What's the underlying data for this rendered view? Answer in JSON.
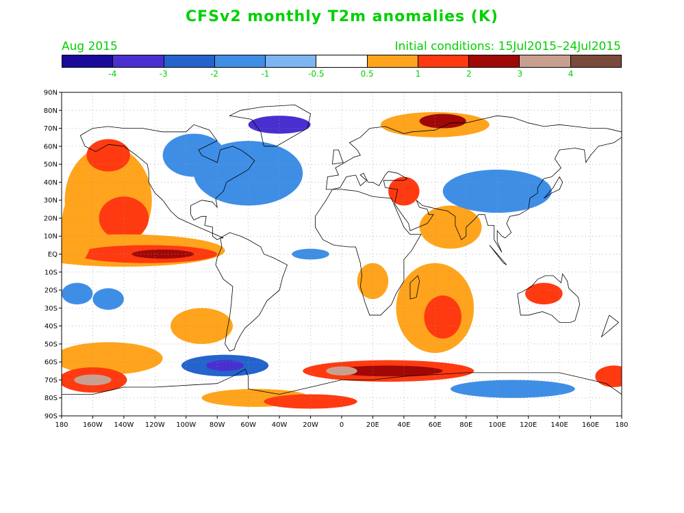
{
  "title": "CFSv2 monthly T2m anomalies (K)",
  "forecast_month": "Aug 2015",
  "initial_conditions": "Initial conditions: 15Jul2015–24Jul2015",
  "colorbar": {
    "colors": [
      "#1a0a9a",
      "#4a2fd0",
      "#2464cc",
      "#3f8ee6",
      "#7db5f2",
      "#ffffff",
      "#ffa41c",
      "#ff3a10",
      "#a00808",
      "#c9a090",
      "#7a4a3c"
    ],
    "labels": [
      "-4",
      "-3",
      "-2",
      "-1",
      "-0.5",
      "0.5",
      "1",
      "2",
      "3",
      "4"
    ]
  },
  "lat_labels": [
    "90N",
    "80N",
    "70N",
    "60N",
    "50N",
    "40N",
    "30N",
    "20N",
    "10N",
    "EQ",
    "10S",
    "20S",
    "30S",
    "40S",
    "50S",
    "60S",
    "70S",
    "80S",
    "90S"
  ],
  "lon_labels": [
    "180",
    "160W",
    "140W",
    "120W",
    "100W",
    "80W",
    "60W",
    "40W",
    "20W",
    "0",
    "20E",
    "40E",
    "60E",
    "80E",
    "100E",
    "120E",
    "140E",
    "160E",
    "180"
  ],
  "anomaly_fields": [
    {
      "lon": -150,
      "lat": 30,
      "rx": 28,
      "ry": 30,
      "cat": 6
    },
    {
      "lon": -140,
      "lat": 20,
      "rx": 16,
      "ry": 12,
      "cat": 7
    },
    {
      "lon": -150,
      "lat": 55,
      "rx": 14,
      "ry": 9,
      "cat": 7
    },
    {
      "lon": -140,
      "lat": 2,
      "rx": 65,
      "ry": 9,
      "cat": 6
    },
    {
      "lon": -125,
      "lat": 0,
      "rx": 45,
      "ry": 5,
      "cat": 7
    },
    {
      "lon": -115,
      "lat": 0,
      "rx": 20,
      "ry": 2.5,
      "cat": 8
    },
    {
      "lon": -170,
      "lat": -22,
      "rx": 10,
      "ry": 6,
      "cat": 3
    },
    {
      "lon": -150,
      "lat": -25,
      "rx": 10,
      "ry": 6,
      "cat": 3
    },
    {
      "lon": -150,
      "lat": -58,
      "rx": 35,
      "ry": 9,
      "cat": 6
    },
    {
      "lon": -160,
      "lat": -70,
      "rx": 22,
      "ry": 7,
      "cat": 7
    },
    {
      "lon": -160,
      "lat": -70,
      "rx": 12,
      "ry": 3,
      "cat": 9
    },
    {
      "lon": -75,
      "lat": -62,
      "rx": 28,
      "ry": 6,
      "cat": 2
    },
    {
      "lon": -75,
      "lat": -62,
      "rx": 12,
      "ry": 3,
      "cat": 1
    },
    {
      "lon": -55,
      "lat": -80,
      "rx": 35,
      "ry": 5,
      "cat": 6
    },
    {
      "lon": -20,
      "lat": -82,
      "rx": 30,
      "ry": 4,
      "cat": 7
    },
    {
      "lon": 30,
      "lat": -65,
      "rx": 55,
      "ry": 6,
      "cat": 7
    },
    {
      "lon": 30,
      "lat": -65,
      "rx": 35,
      "ry": 3,
      "cat": 8
    },
    {
      "lon": 0,
      "lat": -65,
      "rx": 10,
      "ry": 2.5,
      "cat": 9
    },
    {
      "lon": 110,
      "lat": -75,
      "rx": 40,
      "ry": 5,
      "cat": 3
    },
    {
      "lon": 60,
      "lat": -30,
      "rx": 25,
      "ry": 25,
      "cat": 6
    },
    {
      "lon": 65,
      "lat": -35,
      "rx": 12,
      "ry": 12,
      "cat": 7
    },
    {
      "lon": 130,
      "lat": -22,
      "rx": 12,
      "ry": 6,
      "cat": 7
    },
    {
      "lon": 20,
      "lat": -15,
      "rx": 10,
      "ry": 10,
      "cat": 6
    },
    {
      "lon": 70,
      "lat": 15,
      "rx": 20,
      "ry": 12,
      "cat": 6
    },
    {
      "lon": 40,
      "lat": 35,
      "rx": 10,
      "ry": 8,
      "cat": 7
    },
    {
      "lon": 60,
      "lat": 72,
      "rx": 35,
      "ry": 7,
      "cat": 6
    },
    {
      "lon": 65,
      "lat": 74,
      "rx": 15,
      "ry": 4,
      "cat": 8
    },
    {
      "lon": -60,
      "lat": 45,
      "rx": 35,
      "ry": 18,
      "cat": 3
    },
    {
      "lon": -95,
      "lat": 55,
      "rx": 20,
      "ry": 12,
      "cat": 3
    },
    {
      "lon": -40,
      "lat": 72,
      "rx": 20,
      "ry": 5,
      "cat": 1
    },
    {
      "lon": 100,
      "lat": 35,
      "rx": 35,
      "ry": 12,
      "cat": 3
    },
    {
      "lon": -20,
      "lat": 0,
      "rx": 12,
      "ry": 3,
      "cat": 3
    },
    {
      "lon": 175,
      "lat": -68,
      "rx": 12,
      "ry": 6,
      "cat": 7
    },
    {
      "lon": -170,
      "lat": 15,
      "rx": 10,
      "ry": 20,
      "cat": 6
    },
    {
      "lon": -90,
      "lat": -40,
      "rx": 20,
      "ry": 10,
      "cat": 6
    }
  ],
  "coastlines": [
    [
      [
        -168,
        66
      ],
      [
        -160,
        70
      ],
      [
        -150,
        71
      ],
      [
        -140,
        70
      ],
      [
        -128,
        70
      ],
      [
        -115,
        68
      ],
      [
        -100,
        68
      ],
      [
        -95,
        72
      ],
      [
        -85,
        69
      ],
      [
        -80,
        63
      ],
      [
        -92,
        58
      ],
      [
        -90,
        55
      ],
      [
        -80,
        51
      ],
      [
        -78,
        58
      ],
      [
        -70,
        60
      ],
      [
        -65,
        58
      ],
      [
        -60,
        55
      ],
      [
        -56,
        52
      ],
      [
        -60,
        47
      ],
      [
        -66,
        44
      ],
      [
        -70,
        42
      ],
      [
        -74,
        40
      ],
      [
        -76,
        35
      ],
      [
        -81,
        31
      ],
      [
        -80,
        26
      ],
      [
        -83,
        29
      ],
      [
        -90,
        30
      ],
      [
        -97,
        27
      ],
      [
        -97,
        22
      ],
      [
        -95,
        19
      ],
      [
        -90,
        21
      ],
      [
        -87,
        21
      ],
      [
        -88,
        16
      ],
      [
        -83,
        15
      ],
      [
        -83,
        10
      ],
      [
        -80,
        8
      ],
      [
        -78,
        9
      ],
      [
        -76,
        9
      ],
      [
        -92,
        15
      ],
      [
        -105,
        20
      ],
      [
        -110,
        24
      ],
      [
        -115,
        30
      ],
      [
        -120,
        34
      ],
      [
        -124,
        40
      ],
      [
        -124,
        46
      ],
      [
        -125,
        50
      ],
      [
        -132,
        55
      ],
      [
        -140,
        60
      ],
      [
        -150,
        61
      ],
      [
        -158,
        57
      ],
      [
        -165,
        60
      ],
      [
        -168,
        66
      ]
    ],
    [
      [
        -78,
        9
      ],
      [
        -72,
        12
      ],
      [
        -65,
        10
      ],
      [
        -60,
        8
      ],
      [
        -52,
        4
      ],
      [
        -50,
        0
      ],
      [
        -44,
        -2
      ],
      [
        -35,
        -6
      ],
      [
        -38,
        -13
      ],
      [
        -40,
        -20
      ],
      [
        -48,
        -26
      ],
      [
        -53,
        -34
      ],
      [
        -58,
        -38
      ],
      [
        -62,
        -41
      ],
      [
        -65,
        -45
      ],
      [
        -68,
        -50
      ],
      [
        -69,
        -53
      ],
      [
        -72,
        -54
      ],
      [
        -75,
        -50
      ],
      [
        -74,
        -44
      ],
      [
        -72,
        -35
      ],
      [
        -71,
        -28
      ],
      [
        -70,
        -18
      ],
      [
        -76,
        -14
      ],
      [
        -81,
        -6
      ],
      [
        -80,
        -2
      ],
      [
        -77,
        4
      ],
      [
        -78,
        9
      ]
    ],
    [
      [
        -50,
        60
      ],
      [
        -42,
        60
      ],
      [
        -22,
        70
      ],
      [
        -20,
        78
      ],
      [
        -30,
        83
      ],
      [
        -50,
        82
      ],
      [
        -65,
        80
      ],
      [
        -72,
        77
      ],
      [
        -58,
        75
      ],
      [
        -52,
        68
      ],
      [
        -50,
        60
      ]
    ],
    [
      [
        -17,
        21
      ],
      [
        -17,
        15
      ],
      [
        -12,
        8
      ],
      [
        -5,
        5
      ],
      [
        5,
        4
      ],
      [
        9,
        4
      ],
      [
        10,
        1
      ],
      [
        12,
        -5
      ],
      [
        13,
        -12
      ],
      [
        12,
        -18
      ],
      [
        15,
        -27
      ],
      [
        18,
        -34
      ],
      [
        25,
        -34
      ],
      [
        32,
        -28
      ],
      [
        35,
        -22
      ],
      [
        40,
        -15
      ],
      [
        40,
        -10
      ],
      [
        40,
        -3
      ],
      [
        45,
        2
      ],
      [
        51,
        11
      ],
      [
        44,
        11
      ],
      [
        40,
        15
      ],
      [
        35,
        25
      ],
      [
        32,
        31
      ],
      [
        20,
        32
      ],
      [
        10,
        35
      ],
      [
        0,
        36
      ],
      [
        -6,
        36
      ],
      [
        -10,
        30
      ],
      [
        -17,
        21
      ]
    ],
    [
      [
        -10,
        36
      ],
      [
        -9,
        43
      ],
      [
        -2,
        44
      ],
      [
        -4,
        48
      ],
      [
        2,
        51
      ],
      [
        8,
        54
      ],
      [
        12,
        55
      ],
      [
        10,
        58
      ],
      [
        5,
        62
      ],
      [
        12,
        65
      ],
      [
        18,
        70
      ],
      [
        28,
        71
      ],
      [
        40,
        67
      ],
      [
        45,
        68
      ],
      [
        60,
        69
      ],
      [
        70,
        73
      ],
      [
        80,
        73
      ],
      [
        90,
        75
      ],
      [
        100,
        77
      ],
      [
        110,
        76
      ],
      [
        120,
        73
      ],
      [
        130,
        71
      ],
      [
        140,
        72
      ],
      [
        150,
        71
      ],
      [
        160,
        70
      ],
      [
        170,
        70
      ],
      [
        180,
        68
      ]
    ],
    [
      [
        180,
        65
      ],
      [
        175,
        62
      ],
      [
        165,
        60
      ],
      [
        160,
        55
      ],
      [
        157,
        51
      ],
      [
        156,
        58
      ],
      [
        150,
        59
      ],
      [
        140,
        58
      ],
      [
        137,
        53
      ],
      [
        141,
        48
      ],
      [
        135,
        43
      ],
      [
        130,
        42
      ],
      [
        126,
        37
      ],
      [
        126,
        34
      ],
      [
        121,
        31
      ],
      [
        120,
        25
      ],
      [
        114,
        22
      ],
      [
        108,
        21
      ],
      [
        106,
        17
      ],
      [
        109,
        12
      ],
      [
        105,
        9
      ],
      [
        103,
        10
      ],
      [
        100,
        13
      ],
      [
        100,
        7
      ],
      [
        103,
        1
      ],
      [
        98,
        8
      ],
      [
        98,
        16
      ],
      [
        94,
        16
      ],
      [
        92,
        22
      ],
      [
        88,
        22
      ],
      [
        85,
        19
      ],
      [
        80,
        15
      ],
      [
        80,
        10
      ],
      [
        77,
        8
      ],
      [
        73,
        16
      ],
      [
        73,
        21
      ],
      [
        68,
        24
      ],
      [
        62,
        25
      ],
      [
        57,
        26
      ],
      [
        52,
        27
      ],
      [
        48,
        30
      ],
      [
        50,
        26
      ],
      [
        55,
        25
      ],
      [
        56,
        22
      ],
      [
        59,
        22
      ],
      [
        55,
        17
      ],
      [
        52,
        16
      ],
      [
        44,
        13
      ],
      [
        43,
        17
      ],
      [
        38,
        23
      ],
      [
        34,
        28
      ],
      [
        35,
        32
      ],
      [
        36,
        36
      ],
      [
        28,
        37
      ],
      [
        27,
        41
      ],
      [
        40,
        41
      ],
      [
        42,
        42
      ],
      [
        36,
        45
      ],
      [
        30,
        46
      ],
      [
        28,
        44
      ],
      [
        24,
        38
      ],
      [
        20,
        40
      ],
      [
        17,
        40
      ],
      [
        14,
        45
      ],
      [
        12,
        44
      ],
      [
        16,
        41
      ],
      [
        12,
        38
      ],
      [
        9,
        44
      ],
      [
        3,
        43
      ],
      [
        -1,
        37
      ],
      [
        -6,
        36
      ],
      [
        -10,
        36
      ]
    ],
    [
      [
        113,
        -22
      ],
      [
        115,
        -34
      ],
      [
        120,
        -34
      ],
      [
        129,
        -32
      ],
      [
        135,
        -34
      ],
      [
        140,
        -38
      ],
      [
        147,
        -38
      ],
      [
        150,
        -37
      ],
      [
        153,
        -28
      ],
      [
        152,
        -24
      ],
      [
        146,
        -19
      ],
      [
        145,
        -15
      ],
      [
        142,
        -11
      ],
      [
        141,
        -16
      ],
      [
        136,
        -12
      ],
      [
        131,
        -12
      ],
      [
        126,
        -14
      ],
      [
        122,
        -18
      ],
      [
        116,
        -21
      ],
      [
        113,
        -22
      ]
    ],
    [
      [
        -180,
        -78
      ],
      [
        -160,
        -78
      ],
      [
        -150,
        -76
      ],
      [
        -140,
        -74
      ],
      [
        -120,
        -74
      ],
      [
        -100,
        -73
      ],
      [
        -80,
        -72
      ],
      [
        -70,
        -68
      ],
      [
        -62,
        -64
      ],
      [
        -60,
        -68
      ],
      [
        -60,
        -75
      ],
      [
        -40,
        -78
      ],
      [
        -20,
        -74
      ],
      [
        0,
        -70
      ],
      [
        20,
        -70
      ],
      [
        40,
        -68
      ],
      [
        60,
        -67
      ],
      [
        80,
        -66
      ],
      [
        100,
        -66
      ],
      [
        120,
        -66
      ],
      [
        140,
        -66
      ],
      [
        160,
        -70
      ],
      [
        170,
        -72
      ],
      [
        180,
        -78
      ]
    ],
    [
      [
        44,
        -25
      ],
      [
        48,
        -24
      ],
      [
        50,
        -15
      ],
      [
        49,
        -12
      ],
      [
        44,
        -16
      ],
      [
        44,
        -25
      ]
    ],
    [
      [
        -6,
        50
      ],
      [
        -5,
        58
      ],
      [
        -2,
        58
      ],
      [
        0,
        53
      ],
      [
        1,
        51
      ],
      [
        -6,
        50
      ]
    ],
    [
      [
        130,
        31
      ],
      [
        135,
        34
      ],
      [
        140,
        36
      ],
      [
        142,
        40
      ],
      [
        140,
        43
      ],
      [
        136,
        37
      ],
      [
        130,
        31
      ]
    ],
    [
      [
        95,
        5
      ],
      [
        106,
        -6
      ],
      [
        104,
        -5
      ],
      [
        95,
        5
      ]
    ],
    [
      [
        172,
        -34
      ],
      [
        178,
        -38
      ],
      [
        174,
        -41
      ],
      [
        167,
        -46
      ],
      [
        172,
        -34
      ]
    ]
  ]
}
